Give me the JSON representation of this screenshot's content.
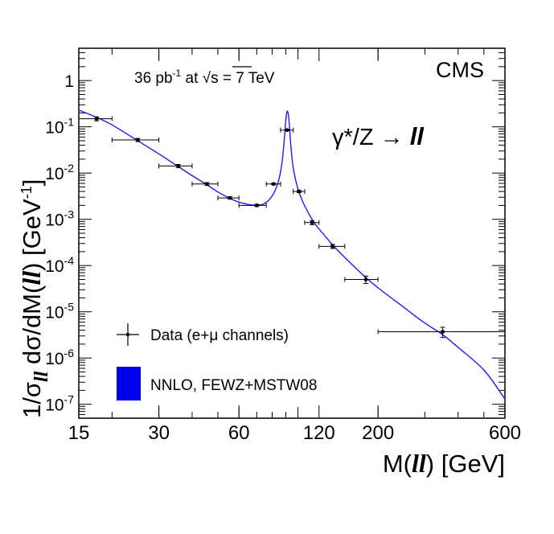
{
  "chart_data": {
    "type": "scatter",
    "title": "",
    "experiment_label": "CMS",
    "luminosity_label": {
      "value": "36 pb",
      "exponent": "-1",
      "connector": " at ",
      "sqrt_symbol": "√",
      "energy": "s = 7 TeV"
    },
    "process_label": {
      "prefix": "γ*/Z",
      "arrow": " → ",
      "final_state": "ll"
    },
    "xlabel": {
      "prefix": "M(",
      "var": "ll",
      "suffix": ")  [GeV]"
    },
    "ylabel": {
      "prefix": "1/σ",
      "sub": "ll",
      "mid": " dσ/dM(",
      "var": "ll",
      "suffix": ")  [GeV",
      "exponent": "-1",
      "close": "]"
    },
    "x_scale": "log",
    "y_scale": "log",
    "xlim": [
      15,
      600
    ],
    "ylim": [
      5e-08,
      5
    ],
    "x_ticks": [
      {
        "value": 15,
        "label": "15"
      },
      {
        "value": 30,
        "label": "30"
      },
      {
        "value": 60,
        "label": "60"
      },
      {
        "value": 120,
        "label": "120"
      },
      {
        "value": 200,
        "label": "200"
      },
      {
        "value": 600,
        "label": "600"
      }
    ],
    "y_ticks": [
      {
        "value": 1,
        "base": "1",
        "exp": ""
      },
      {
        "value": 0.1,
        "base": "10",
        "exp": "-1"
      },
      {
        "value": 0.01,
        "base": "10",
        "exp": "-2"
      },
      {
        "value": 0.001,
        "base": "10",
        "exp": "-3"
      },
      {
        "value": 0.0001,
        "base": "10",
        "exp": "-4"
      },
      {
        "value": 1e-05,
        "base": "10",
        "exp": "-5"
      },
      {
        "value": 1e-06,
        "base": "10",
        "exp": "-6"
      },
      {
        "value": 1e-07,
        "base": "10",
        "exp": "-7"
      }
    ],
    "series": [
      {
        "name": "Data (e+μ channels)",
        "kind": "points",
        "color": "#000000",
        "points": [
          {
            "x": 17.5,
            "y": 0.15,
            "xlo": 15,
            "xhi": 20,
            "yerr_rel": 0.1
          },
          {
            "x": 25,
            "y": 0.052,
            "xlo": 20,
            "xhi": 30,
            "yerr_rel": 0.08
          },
          {
            "x": 35.5,
            "y": 0.0142,
            "xlo": 30,
            "xhi": 40,
            "yerr_rel": 0.08
          },
          {
            "x": 45.5,
            "y": 0.0058,
            "xlo": 40,
            "xhi": 50,
            "yerr_rel": 0.07
          },
          {
            "x": 55.5,
            "y": 0.0029,
            "xlo": 50,
            "xhi": 60,
            "yerr_rel": 0.06
          },
          {
            "x": 70,
            "y": 0.002,
            "xlo": 60,
            "xhi": 76,
            "yerr_rel": 0.05
          },
          {
            "x": 81,
            "y": 0.0058,
            "xlo": 76,
            "xhi": 86,
            "yerr_rel": 0.04
          },
          {
            "x": 91,
            "y": 0.085,
            "xlo": 86,
            "xhi": 96,
            "yerr_rel": 0.03
          },
          {
            "x": 101,
            "y": 0.004,
            "xlo": 96,
            "xhi": 106,
            "yerr_rel": 0.05
          },
          {
            "x": 113,
            "y": 0.00085,
            "xlo": 106,
            "xhi": 120,
            "yerr_rel": 0.1
          },
          {
            "x": 135,
            "y": 0.00026,
            "xlo": 120,
            "xhi": 150,
            "yerr_rel": 0.1
          },
          {
            "x": 180,
            "y": 5e-05,
            "xlo": 150,
            "xhi": 200,
            "yerr_rel": 0.18
          },
          {
            "x": 350,
            "y": 3.7e-06,
            "xlo": 200,
            "xhi": 600,
            "yerr_rel": 0.25
          }
        ]
      },
      {
        "name": "NNLO, FEWZ+MSTW08",
        "kind": "curve",
        "color": "#1a1aff",
        "points": [
          {
            "x": 15,
            "y": 0.23
          },
          {
            "x": 17.5,
            "y": 0.16
          },
          {
            "x": 20,
            "y": 0.11
          },
          {
            "x": 25,
            "y": 0.05
          },
          {
            "x": 30,
            "y": 0.026
          },
          {
            "x": 35,
            "y": 0.0145
          },
          {
            "x": 40,
            "y": 0.0088
          },
          {
            "x": 45,
            "y": 0.0058
          },
          {
            "x": 50,
            "y": 0.0039
          },
          {
            "x": 55,
            "y": 0.0029
          },
          {
            "x": 60,
            "y": 0.00235
          },
          {
            "x": 65,
            "y": 0.0021
          },
          {
            "x": 70,
            "y": 0.002
          },
          {
            "x": 75,
            "y": 0.0022
          },
          {
            "x": 80,
            "y": 0.0032
          },
          {
            "x": 84,
            "y": 0.006
          },
          {
            "x": 87,
            "y": 0.016
          },
          {
            "x": 89,
            "y": 0.06
          },
          {
            "x": 90,
            "y": 0.14
          },
          {
            "x": 91.2,
            "y": 0.22
          },
          {
            "x": 92.5,
            "y": 0.14
          },
          {
            "x": 94,
            "y": 0.04
          },
          {
            "x": 96,
            "y": 0.013
          },
          {
            "x": 100,
            "y": 0.0045
          },
          {
            "x": 105,
            "y": 0.0022
          },
          {
            "x": 110,
            "y": 0.0013
          },
          {
            "x": 115,
            "y": 0.00085
          },
          {
            "x": 120,
            "y": 0.00062
          },
          {
            "x": 135,
            "y": 0.00028
          },
          {
            "x": 150,
            "y": 0.00015
          },
          {
            "x": 180,
            "y": 5.5e-05
          },
          {
            "x": 200,
            "y": 3.3e-05
          },
          {
            "x": 250,
            "y": 1.25e-05
          },
          {
            "x": 300,
            "y": 5.7e-06
          },
          {
            "x": 350,
            "y": 3.2e-06
          },
          {
            "x": 400,
            "y": 1.7e-06
          },
          {
            "x": 500,
            "y": 5.5e-07
          },
          {
            "x": 600,
            "y": 1.3e-07
          }
        ]
      }
    ],
    "legend": {
      "placement": "bottom-left",
      "entries": [
        {
          "label": "Data (e+μ channels)",
          "marker": "point-with-errors"
        },
        {
          "label": "NNLO, FEWZ+MSTW08",
          "marker": "filled-box",
          "color": "#0000ee"
        }
      ]
    }
  }
}
